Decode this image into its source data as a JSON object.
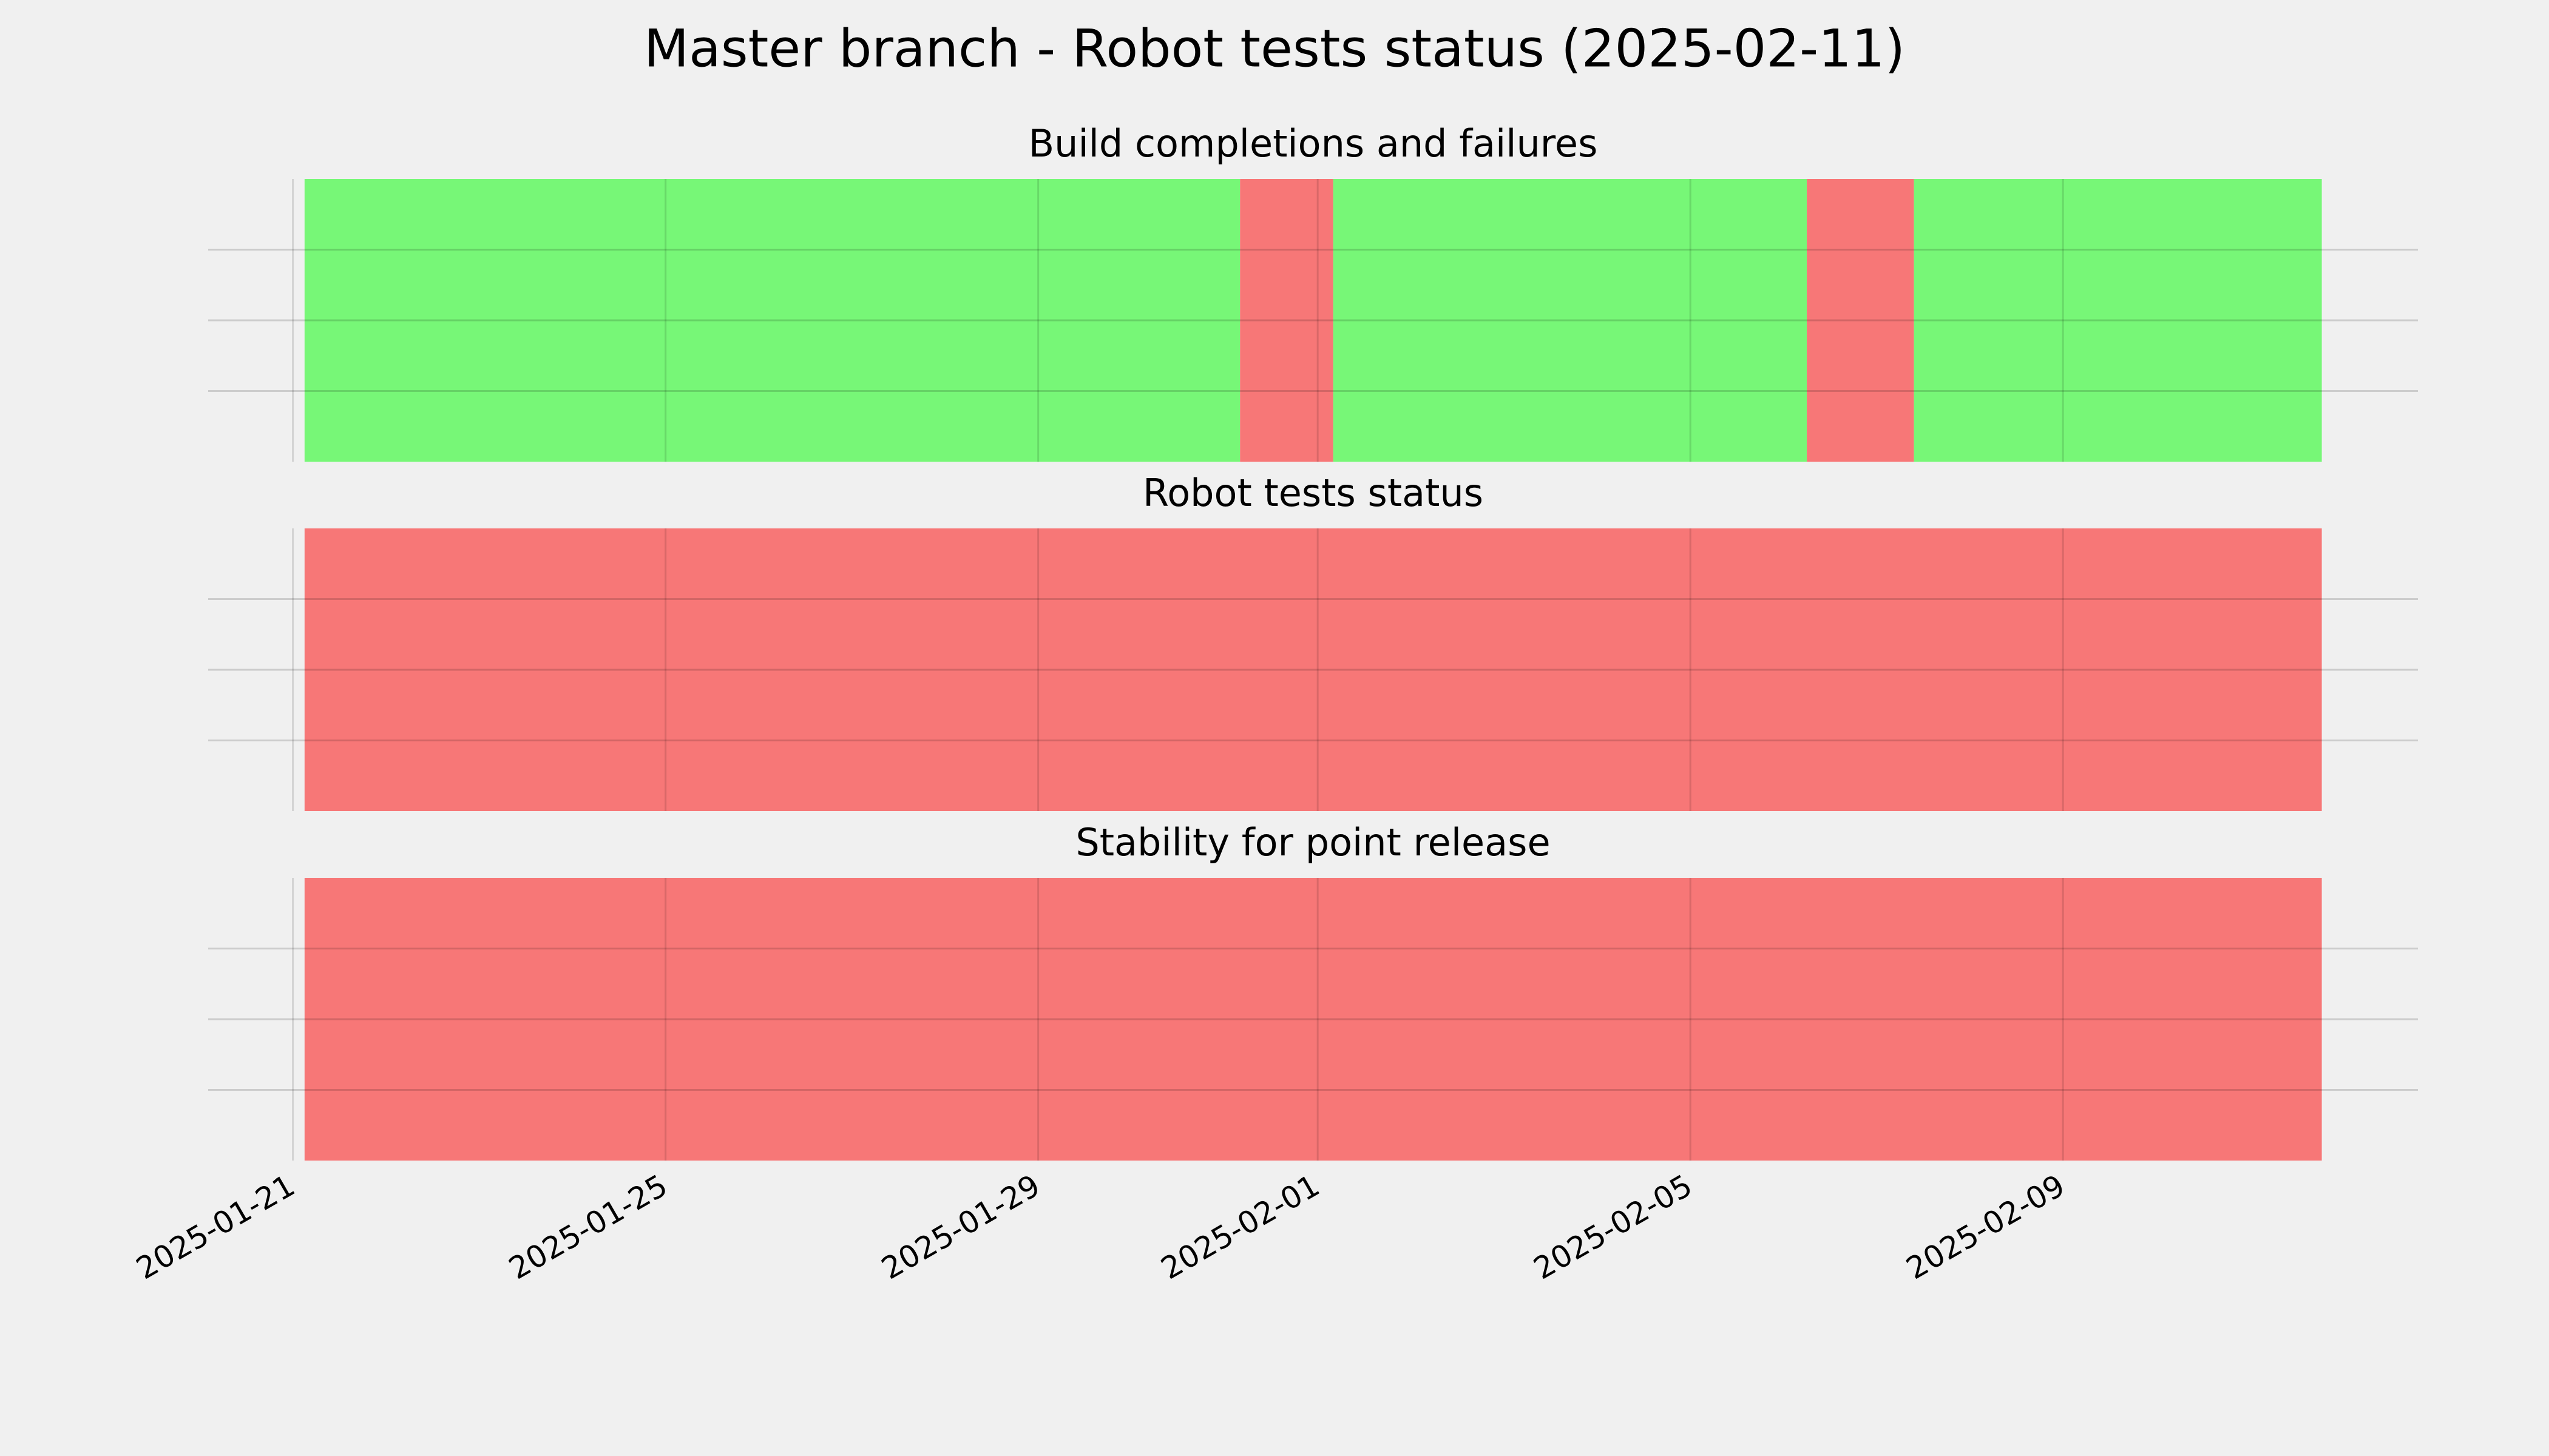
{
  "title": "Master branch - Robot tests status (2025-02-11)",
  "shared_x": {
    "xlim": [
      "2025-01-20T02:10",
      "2025-02-12T19:26"
    ],
    "xticks": [
      "2025-01-21",
      "2025-01-25",
      "2025-01-29",
      "2025-02-01",
      "2025-02-05",
      "2025-02-09"
    ],
    "grid": true
  },
  "chart_data": [
    {
      "type": "timeline",
      "title": "Build completions and failures",
      "ylim": [
        0,
        1
      ],
      "yticks": [
        0.25,
        0.5,
        0.75
      ],
      "grid": true,
      "segments": [
        {
          "start": "2025-01-21T03:00",
          "end": "2025-01-31T04:00",
          "color": "#77f777"
        },
        {
          "start": "2025-01-31T04:00",
          "end": "2025-02-01T04:00",
          "color": "#f77777"
        },
        {
          "start": "2025-02-01T04:00",
          "end": "2025-02-06T06:00",
          "color": "#77f777"
        },
        {
          "start": "2025-02-06T06:00",
          "end": "2025-02-07T09:36",
          "color": "#f77777"
        },
        {
          "start": "2025-02-07T09:36",
          "end": "2025-02-11T18:40",
          "color": "#77f777"
        }
      ]
    },
    {
      "type": "timeline",
      "title": "Robot tests status",
      "ylim": [
        0,
        1
      ],
      "yticks": [
        0.25,
        0.5,
        0.75
      ],
      "grid": true,
      "segments": [
        {
          "start": "2025-01-21T03:00",
          "end": "2025-02-11T18:40",
          "color": "#f77777"
        }
      ]
    },
    {
      "type": "timeline",
      "title": "Stability for point release",
      "ylim": [
        0,
        1
      ],
      "yticks": [
        0.25,
        0.5,
        0.75
      ],
      "grid": true,
      "segments": [
        {
          "start": "2025-01-21T03:00",
          "end": "2025-02-11T18:40",
          "color": "#f77777"
        }
      ]
    }
  ]
}
